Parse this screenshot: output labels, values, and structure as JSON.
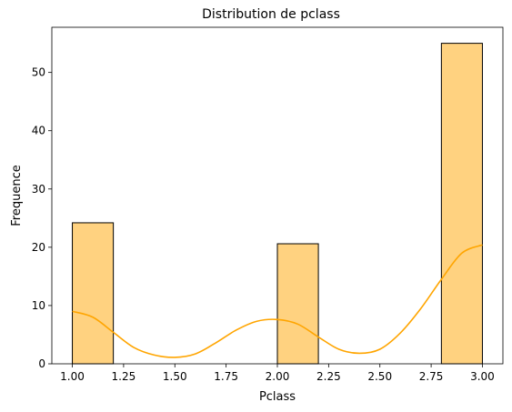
{
  "chart_data": {
    "type": "bar",
    "title": "Distribution de pclass",
    "xlabel": "Pclass",
    "ylabel": "Frequence",
    "xlim": [
      0.9,
      3.1
    ],
    "ylim": [
      0,
      57.75
    ],
    "xticks": [
      1.0,
      1.25,
      1.5,
      1.75,
      2.0,
      2.25,
      2.5,
      2.75,
      3.0
    ],
    "xtick_labels": [
      "1.00",
      "1.25",
      "1.50",
      "1.75",
      "2.00",
      "2.25",
      "2.50",
      "2.75",
      "3.00"
    ],
    "yticks": [
      0,
      10,
      20,
      30,
      40,
      50
    ],
    "ytick_labels": [
      "0",
      "10",
      "20",
      "30",
      "40",
      "50"
    ],
    "grid": false,
    "bars": [
      {
        "x0": 1.0,
        "x1": 1.2,
        "value": 24.2
      },
      {
        "x0": 2.0,
        "x1": 2.2,
        "value": 20.6
      },
      {
        "x0": 2.8,
        "x1": 3.0,
        "value": 55.0
      }
    ],
    "kde": {
      "x": [
        1.0,
        1.1,
        1.2,
        1.3,
        1.4,
        1.5,
        1.6,
        1.7,
        1.8,
        1.9,
        2.0,
        2.1,
        2.2,
        2.3,
        2.4,
        2.5,
        2.6,
        2.7,
        2.8,
        2.9,
        3.0
      ],
      "y": [
        9.0,
        8.0,
        5.4,
        2.8,
        1.5,
        1.1,
        1.7,
        3.6,
        5.8,
        7.3,
        7.6,
        6.8,
        4.6,
        2.5,
        1.8,
        2.5,
        5.3,
        9.5,
        14.5,
        19.0,
        20.4
      ]
    },
    "colors": {
      "bar_fill": "#ffd280",
      "bar_edge": "#000000",
      "kde_line": "#ffa500"
    }
  }
}
